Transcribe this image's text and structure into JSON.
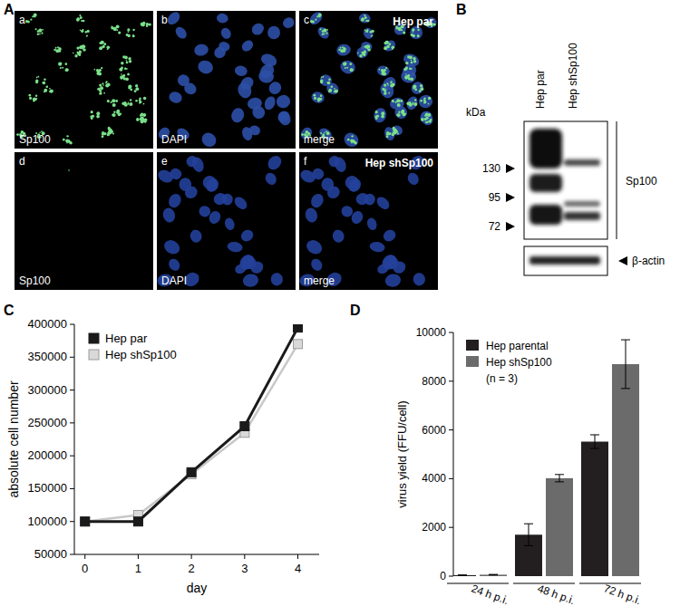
{
  "panel_labels": [
    "A",
    "B",
    "C",
    "D"
  ],
  "panel_a": {
    "cell_lines": [
      "Hep par",
      "Hep shSp100"
    ],
    "tiles": [
      {
        "letter": "a",
        "stain": "Sp100"
      },
      {
        "letter": "b",
        "stain": "DAPI"
      },
      {
        "letter": "c",
        "stain": "merge"
      },
      {
        "letter": "d",
        "stain": "Sp100"
      },
      {
        "letter": "e",
        "stain": "DAPI"
      },
      {
        "letter": "f",
        "stain": "merge"
      }
    ]
  },
  "panel_b": {
    "lanes": [
      "Hep par",
      "Hep shSp100"
    ],
    "unit": "kDa",
    "markers": [
      130,
      95,
      72
    ],
    "target": "Sp100",
    "loading": "β-actin"
  },
  "chart_data": [
    {
      "type": "line",
      "x_label": "day",
      "y_label": "absolute cell number",
      "x": [
        0,
        1,
        2,
        3,
        4
      ],
      "xlim": [
        -0.2,
        4.4
      ],
      "xticks": [
        0,
        1,
        2,
        3,
        4
      ],
      "ylim": [
        50000,
        400000
      ],
      "yticks": [
        50000,
        100000,
        150000,
        200000,
        250000,
        300000,
        350000,
        400000
      ],
      "grid": false,
      "legend": "upper left",
      "series": [
        {
          "name": "Hep par",
          "color": "#1a1a1a",
          "marker": "square",
          "line_style": "solid",
          "values": [
            100000,
            100000,
            175000,
            245000,
            395000
          ]
        },
        {
          "name": "Hep shSp100",
          "color": "#d9d9d9",
          "marker": "square",
          "line_style": "solid",
          "values": [
            100000,
            110000,
            172000,
            235000,
            370000
          ]
        }
      ]
    },
    {
      "type": "bar",
      "y_label": "virus yield (FFU/cell)",
      "categories": [
        "24 h p.i.",
        "48 h p.i.",
        "72 h p.i."
      ],
      "ylim": [
        0,
        10000
      ],
      "yticks": [
        0,
        2000,
        4000,
        6000,
        8000,
        10000
      ],
      "grid": false,
      "legend": "upper left",
      "annotations": [
        "(n = 3)"
      ],
      "series": [
        {
          "name": "Hep parental",
          "color": "#231f20",
          "values": [
            40,
            1700,
            5520
          ],
          "error": [
            10,
            450,
            280
          ]
        },
        {
          "name": "Hep shSp100",
          "color": "#6b6b6b",
          "values": [
            60,
            4020,
            8700
          ],
          "error": [
            10,
            150,
            1000
          ]
        }
      ]
    }
  ]
}
